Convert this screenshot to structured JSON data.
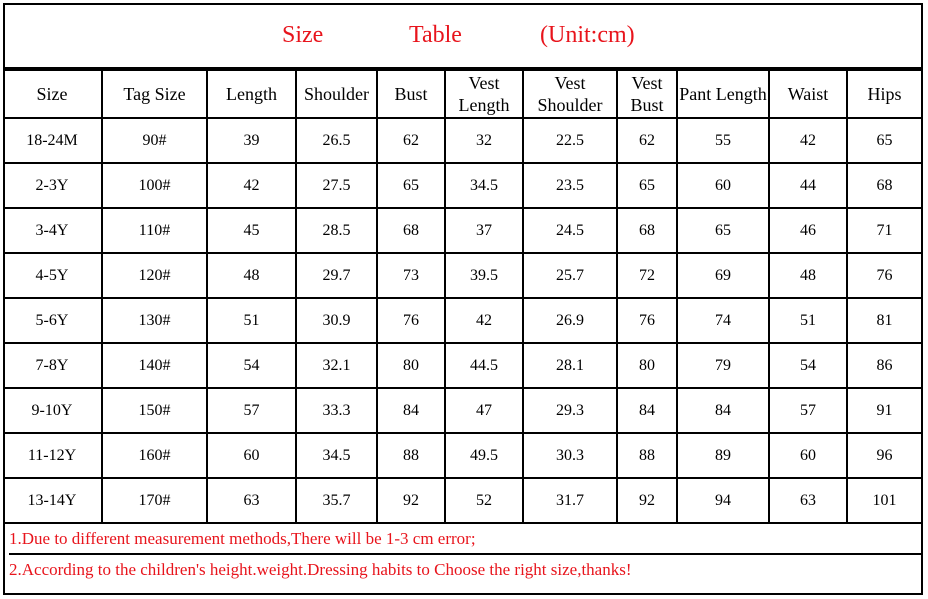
{
  "title": {
    "size": "Size",
    "table": "Table",
    "unit": "(Unit:cm)",
    "color": "#e8141c"
  },
  "headers": [
    "Size",
    "Tag Size",
    "Length",
    "Shoulder",
    "Bust",
    "Vest Length",
    "Vest Shoulder",
    "Vest Bust",
    "Pant Length",
    "Waist",
    "Hips"
  ],
  "rows": [
    [
      "18-24M",
      "90#",
      "39",
      "26.5",
      "62",
      "32",
      "22.5",
      "62",
      "55",
      "42",
      "65"
    ],
    [
      "2-3Y",
      "100#",
      "42",
      "27.5",
      "65",
      "34.5",
      "23.5",
      "65",
      "60",
      "44",
      "68"
    ],
    [
      "3-4Y",
      "110#",
      "45",
      "28.5",
      "68",
      "37",
      "24.5",
      "68",
      "65",
      "46",
      "71"
    ],
    [
      "4-5Y",
      "120#",
      "48",
      "29.7",
      "73",
      "39.5",
      "25.7",
      "72",
      "69",
      "48",
      "76"
    ],
    [
      "5-6Y",
      "130#",
      "51",
      "30.9",
      "76",
      "42",
      "26.9",
      "76",
      "74",
      "51",
      "81"
    ],
    [
      "7-8Y",
      "140#",
      "54",
      "32.1",
      "80",
      "44.5",
      "28.1",
      "80",
      "79",
      "54",
      "86"
    ],
    [
      "9-10Y",
      "150#",
      "57",
      "33.3",
      "84",
      "47",
      "29.3",
      "84",
      "84",
      "57",
      "91"
    ],
    [
      "11-12Y",
      "160#",
      "60",
      "34.5",
      "88",
      "49.5",
      "30.3",
      "88",
      "89",
      "60",
      "96"
    ],
    [
      "13-14Y",
      "170#",
      "63",
      "35.7",
      "92",
      "52",
      "31.7",
      "92",
      "94",
      "63",
      "101"
    ]
  ],
  "notes": [
    "1.Due to different measurement methods,There will be 1-3 cm error;",
    "2.According to the children's height.weight.Dressing habits to Choose the right size,thanks!"
  ]
}
